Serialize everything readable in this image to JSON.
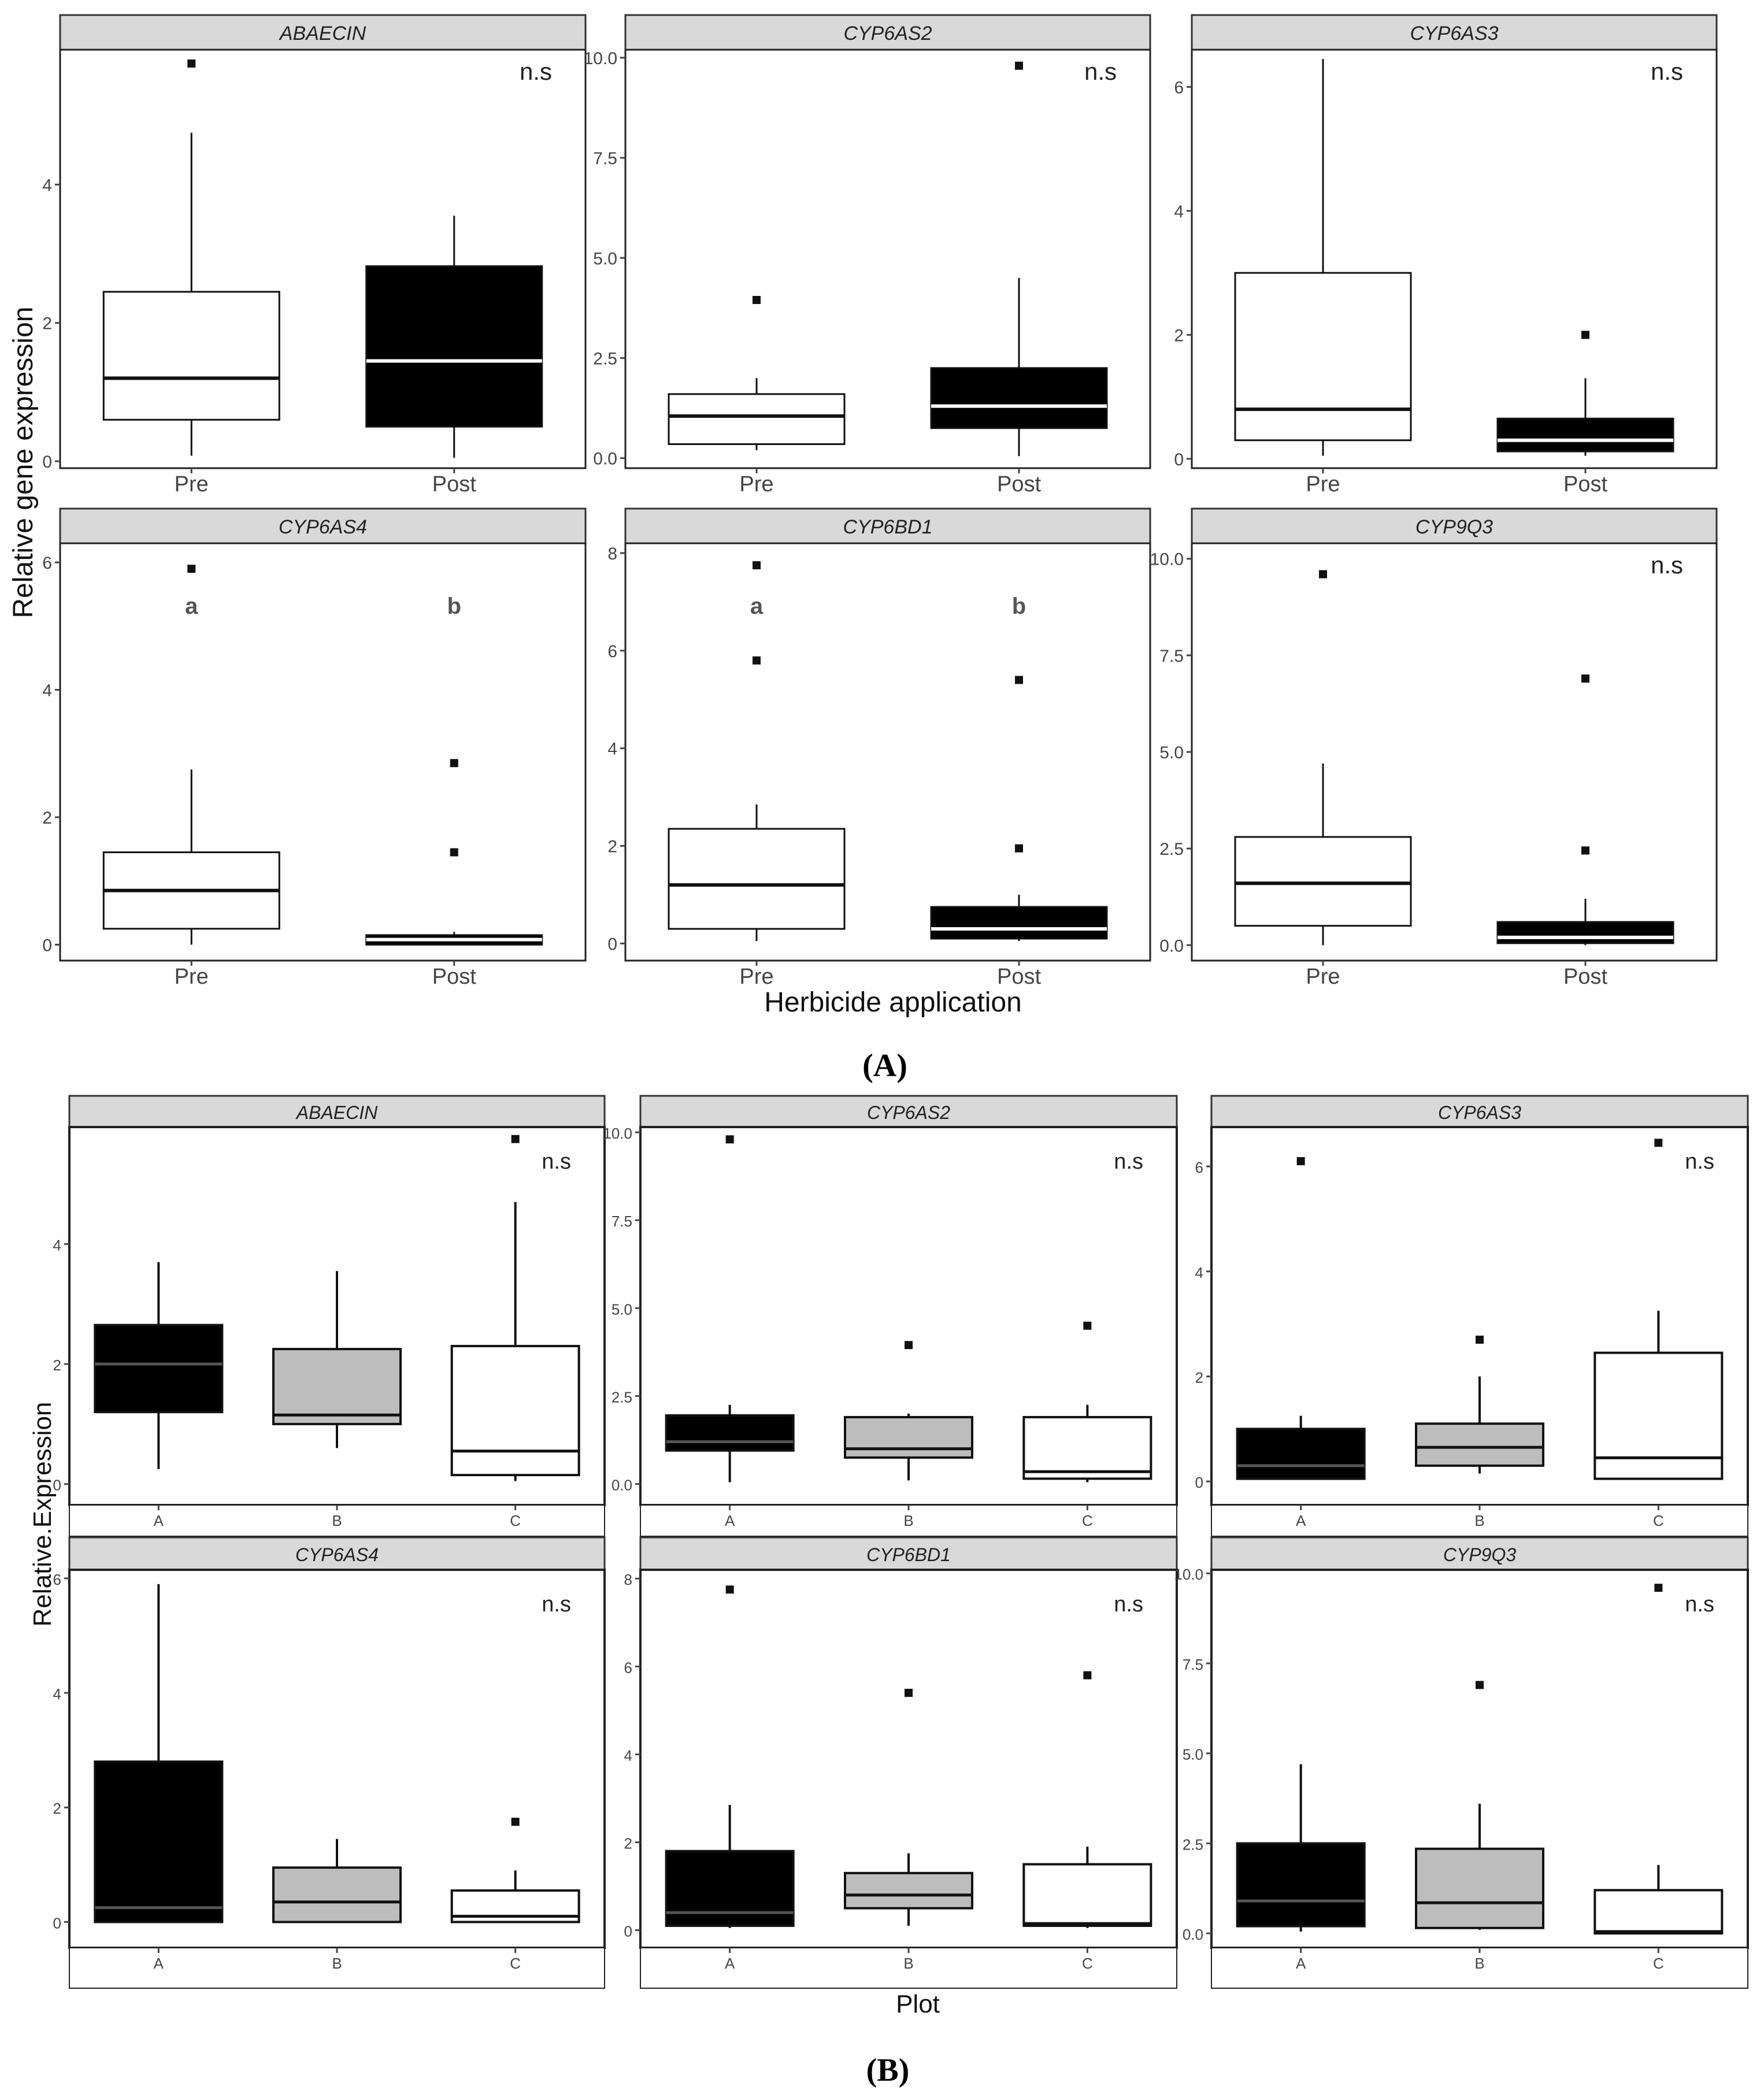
{
  "figure": {
    "panel_a_label": "(A)",
    "panel_b_label": "(B)",
    "panel_a_ylabel": "Relative gene expression",
    "panel_a_xlabel": "Herbicide application",
    "panel_b_ylabel": "Relative.Expression",
    "panel_b_xlabel": "Plot"
  },
  "colors": {
    "strip_fill": "#d9d9d9",
    "pre": "#ffffff",
    "post": "#000000",
    "plot_a": "#000000",
    "plot_b": "#bdbdbd",
    "plot_c": "#ffffff"
  },
  "chart_data": [
    {
      "panel": "A",
      "type": "box",
      "title": "ABAECIN",
      "categories": [
        "Pre",
        "Post"
      ],
      "ylim": [
        -0.1,
        5.95
      ],
      "yticks": [
        0,
        2,
        4
      ],
      "ytick_labels": [
        "0",
        "2",
        "4"
      ],
      "annotation": "n.s",
      "letters": [],
      "boxes": [
        {
          "min": 0.08,
          "q1": 0.6,
          "median": 1.2,
          "q3": 2.45,
          "max": 4.75,
          "outliers": [
            5.75
          ]
        },
        {
          "min": 0.05,
          "q1": 0.5,
          "median": 1.45,
          "q3": 2.82,
          "max": 3.55,
          "outliers": []
        }
      ]
    },
    {
      "panel": "A",
      "type": "box",
      "title": "CYP6AS2",
      "categories": [
        "Pre",
        "Post"
      ],
      "ylim": [
        -0.25,
        10.2
      ],
      "yticks": [
        0,
        2.5,
        5,
        7.5,
        10
      ],
      "ytick_labels": [
        "0.0",
        "2.5",
        "5.0",
        "7.5",
        "10.0"
      ],
      "annotation": "n.s",
      "letters": [],
      "boxes": [
        {
          "min": 0.2,
          "q1": 0.35,
          "median": 1.05,
          "q3": 1.6,
          "max": 2.0,
          "outliers": [
            3.95
          ]
        },
        {
          "min": 0.05,
          "q1": 0.75,
          "median": 1.3,
          "q3": 2.25,
          "max": 4.5,
          "outliers": [
            9.8
          ]
        }
      ]
    },
    {
      "panel": "A",
      "type": "box",
      "title": "CYP6AS3",
      "categories": [
        "Pre",
        "Post"
      ],
      "ylim": [
        -0.15,
        6.6
      ],
      "yticks": [
        0,
        2,
        4,
        6
      ],
      "ytick_labels": [
        "0",
        "2",
        "4",
        "6"
      ],
      "annotation": "n.s",
      "letters": [],
      "boxes": [
        {
          "min": 0.05,
          "q1": 0.3,
          "median": 0.8,
          "q3": 3.0,
          "max": 6.45,
          "outliers": []
        },
        {
          "min": 0.05,
          "q1": 0.12,
          "median": 0.3,
          "q3": 0.65,
          "max": 1.3,
          "outliers": [
            2.0
          ]
        }
      ]
    },
    {
      "panel": "A",
      "type": "box",
      "title": "CYP6AS4",
      "categories": [
        "Pre",
        "Post"
      ],
      "ylim": [
        -0.25,
        6.3
      ],
      "yticks": [
        0,
        2,
        4,
        6
      ],
      "ytick_labels": [
        "0",
        "2",
        "4",
        "6"
      ],
      "annotation": "",
      "letters": [
        "a",
        "b"
      ],
      "boxes": [
        {
          "min": 0.0,
          "q1": 0.25,
          "median": 0.85,
          "q3": 1.45,
          "max": 2.75,
          "outliers": [
            5.9
          ]
        },
        {
          "min": 0.0,
          "q1": 0.0,
          "median": 0.08,
          "q3": 0.15,
          "max": 0.2,
          "outliers": [
            1.45,
            2.85
          ]
        }
      ]
    },
    {
      "panel": "A",
      "type": "box",
      "title": "CYP6BD1",
      "categories": [
        "Pre",
        "Post"
      ],
      "ylim": [
        -0.35,
        8.2
      ],
      "yticks": [
        0,
        2,
        4,
        6,
        8
      ],
      "ytick_labels": [
        "0",
        "2",
        "4",
        "6",
        "8"
      ],
      "annotation": "",
      "letters": [
        "a",
        "b"
      ],
      "boxes": [
        {
          "min": 0.05,
          "q1": 0.3,
          "median": 1.2,
          "q3": 2.35,
          "max": 2.85,
          "outliers": [
            5.8,
            7.75
          ]
        },
        {
          "min": 0.05,
          "q1": 0.1,
          "median": 0.3,
          "q3": 0.75,
          "max": 1.0,
          "outliers": [
            1.95,
            5.4
          ]
        }
      ]
    },
    {
      "panel": "A",
      "type": "box",
      "title": "CYP9Q3",
      "categories": [
        "Pre",
        "Post"
      ],
      "ylim": [
        -0.4,
        10.4
      ],
      "yticks": [
        0,
        2.5,
        5,
        7.5,
        10
      ],
      "ytick_labels": [
        "0.0",
        "2.5",
        "5.0",
        "7.5",
        "10.0"
      ],
      "annotation": "n.s",
      "letters": [],
      "boxes": [
        {
          "min": 0.0,
          "q1": 0.5,
          "median": 1.6,
          "q3": 2.8,
          "max": 4.7,
          "outliers": [
            9.6
          ]
        },
        {
          "min": 0.0,
          "q1": 0.05,
          "median": 0.2,
          "q3": 0.6,
          "max": 1.2,
          "outliers": [
            2.45,
            6.9
          ]
        }
      ]
    },
    {
      "panel": "B",
      "type": "box",
      "title": "ABAECIN",
      "categories": [
        "A",
        "B",
        "C"
      ],
      "ylim": [
        -0.35,
        5.95
      ],
      "yticks": [
        0,
        2,
        4
      ],
      "ytick_labels": [
        "0",
        "2",
        "4"
      ],
      "annotation": "n.s",
      "boxes": [
        {
          "min": 0.25,
          "q1": 1.2,
          "median": 2.0,
          "q3": 2.65,
          "max": 3.7,
          "outliers": []
        },
        {
          "min": 0.6,
          "q1": 1.0,
          "median": 1.15,
          "q3": 2.25,
          "max": 3.55,
          "outliers": []
        },
        {
          "min": 0.05,
          "q1": 0.15,
          "median": 0.55,
          "q3": 2.3,
          "max": 4.7,
          "outliers": [
            5.75
          ]
        }
      ]
    },
    {
      "panel": "B",
      "type": "box",
      "title": "CYP6AS2",
      "categories": [
        "A",
        "B",
        "C"
      ],
      "ylim": [
        -0.6,
        10.15
      ],
      "yticks": [
        0,
        2.5,
        5,
        7.5,
        10
      ],
      "ytick_labels": [
        "0.0",
        "2.5",
        "5.0",
        "7.5",
        "10.0"
      ],
      "annotation": "n.s",
      "boxes": [
        {
          "min": 0.05,
          "q1": 0.95,
          "median": 1.2,
          "q3": 1.95,
          "max": 2.25,
          "outliers": [
            9.8
          ]
        },
        {
          "min": 0.1,
          "q1": 0.75,
          "median": 1.0,
          "q3": 1.9,
          "max": 2.0,
          "outliers": [
            3.95
          ]
        },
        {
          "min": 0.05,
          "q1": 0.15,
          "median": 0.35,
          "q3": 1.9,
          "max": 2.25,
          "outliers": [
            4.5
          ]
        }
      ]
    },
    {
      "panel": "B",
      "type": "box",
      "title": "CYP6AS3",
      "categories": [
        "A",
        "B",
        "C"
      ],
      "ylim": [
        -0.45,
        6.75
      ],
      "yticks": [
        0,
        2,
        4,
        6
      ],
      "ytick_labels": [
        "0",
        "2",
        "4",
        "6"
      ],
      "annotation": "n.s",
      "boxes": [
        {
          "min": 0.05,
          "q1": 0.05,
          "median": 0.3,
          "q3": 1.0,
          "max": 1.25,
          "outliers": [
            6.1
          ]
        },
        {
          "min": 0.15,
          "q1": 0.3,
          "median": 0.65,
          "q3": 1.1,
          "max": 2.0,
          "outliers": [
            2.7
          ]
        },
        {
          "min": 0.05,
          "q1": 0.05,
          "median": 0.45,
          "q3": 2.45,
          "max": 3.25,
          "outliers": [
            6.45
          ]
        }
      ]
    },
    {
      "panel": "B",
      "type": "box",
      "title": "CYP6AS4",
      "categories": [
        "A",
        "B",
        "C"
      ],
      "ylim": [
        -0.45,
        6.15
      ],
      "yticks": [
        0,
        2,
        4,
        6
      ],
      "ytick_labels": [
        "0",
        "2",
        "4",
        "6"
      ],
      "annotation": "n.s",
      "boxes": [
        {
          "min": 0.0,
          "q1": 0.0,
          "median": 0.25,
          "q3": 2.8,
          "max": 5.9,
          "outliers": []
        },
        {
          "min": 0.0,
          "q1": 0.0,
          "median": 0.35,
          "q3": 0.95,
          "max": 1.45,
          "outliers": []
        },
        {
          "min": 0.0,
          "q1": 0.0,
          "median": 0.1,
          "q3": 0.55,
          "max": 0.9,
          "outliers": [
            1.75
          ]
        }
      ]
    },
    {
      "panel": "B",
      "type": "box",
      "title": "CYP6BD1",
      "categories": [
        "A",
        "B",
        "C"
      ],
      "ylim": [
        -0.4,
        8.2
      ],
      "yticks": [
        0,
        2,
        4,
        6,
        8
      ],
      "ytick_labels": [
        "0",
        "2",
        "4",
        "6",
        "8"
      ],
      "annotation": "n.s",
      "boxes": [
        {
          "min": 0.05,
          "q1": 0.1,
          "median": 0.4,
          "q3": 1.8,
          "max": 2.85,
          "outliers": [
            7.75
          ]
        },
        {
          "min": 0.1,
          "q1": 0.5,
          "median": 0.8,
          "q3": 1.3,
          "max": 1.75,
          "outliers": [
            5.4
          ]
        },
        {
          "min": 0.05,
          "q1": 0.1,
          "median": 0.15,
          "q3": 1.5,
          "max": 1.9,
          "outliers": [
            5.8
          ]
        }
      ]
    },
    {
      "panel": "B",
      "type": "box",
      "title": "CYP9Q3",
      "categories": [
        "A",
        "B",
        "C"
      ],
      "ylim": [
        -0.4,
        10.1
      ],
      "yticks": [
        0,
        2.5,
        5,
        7.5,
        10
      ],
      "ytick_labels": [
        "0.0",
        "2.5",
        "5.0",
        "7.5",
        "10.0"
      ],
      "annotation": "n.s",
      "boxes": [
        {
          "min": 0.05,
          "q1": 0.2,
          "median": 0.9,
          "q3": 2.5,
          "max": 4.7,
          "outliers": []
        },
        {
          "min": 0.1,
          "q1": 0.15,
          "median": 0.85,
          "q3": 2.35,
          "max": 3.6,
          "outliers": [
            6.9
          ]
        },
        {
          "min": 0.0,
          "q1": 0.0,
          "median": 0.05,
          "q3": 1.2,
          "max": 1.9,
          "outliers": [
            9.6
          ]
        }
      ]
    }
  ]
}
